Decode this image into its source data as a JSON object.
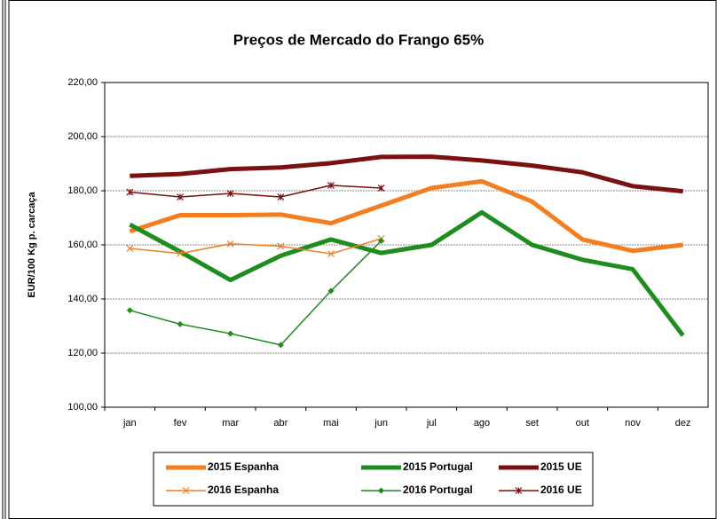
{
  "chart_data": {
    "type": "line",
    "title": "Preços de Mercado do Frango 65%",
    "y_label": "EUR/100 Kg p. carcaça",
    "categories": [
      "jan",
      "fev",
      "mar",
      "abr",
      "mai",
      "jun",
      "jul",
      "ago",
      "set",
      "out",
      "nov",
      "dez"
    ],
    "ylim": [
      100,
      220
    ],
    "yticks": [
      {
        "value": 100,
        "label": "100,00"
      },
      {
        "value": 120,
        "label": "120,00"
      },
      {
        "value": 140,
        "label": "140,00"
      },
      {
        "value": 160,
        "label": "160,00"
      },
      {
        "value": 180,
        "label": "180,00"
      },
      {
        "value": 200,
        "label": "200,00"
      },
      {
        "value": 220,
        "label": "220,00"
      }
    ],
    "grid": true,
    "legend": "bottom",
    "series": [
      {
        "name": "2015 Espanha",
        "color": "#f47d20",
        "linewidth": 5,
        "marker": "none",
        "values": [
          165,
          171,
          171,
          171.2,
          168,
          174.5,
          181,
          183.5,
          176,
          162,
          157.8,
          160
        ]
      },
      {
        "name": "2015 Portugal",
        "color": "#1e8c1e",
        "linewidth": 5,
        "marker": "none",
        "values": [
          167.5,
          157.5,
          147,
          156,
          162,
          157,
          160,
          172,
          160,
          154.5,
          151,
          126.5
        ]
      },
      {
        "name": "2015 UE",
        "color": "#7b1010",
        "linewidth": 5,
        "marker": "none",
        "values": [
          185.5,
          186.2,
          188,
          188.6,
          190.2,
          192.5,
          192.6,
          191.2,
          189.3,
          186.8,
          181.7,
          179.8
        ]
      },
      {
        "name": "2016 Espanha",
        "color": "#f47d20",
        "linewidth": 1.5,
        "marker": "x",
        "values": [
          158.7,
          156.8,
          160.4,
          159.5,
          156.7,
          162.3,
          null,
          null,
          null,
          null,
          null,
          null
        ]
      },
      {
        "name": "2016 Portugal",
        "color": "#1e8c1e",
        "linewidth": 1.5,
        "marker": "diamond",
        "values": [
          135.8,
          130.7,
          127.2,
          123,
          143,
          161.5,
          null,
          null,
          null,
          null,
          null,
          null
        ]
      },
      {
        "name": "2016 UE",
        "color": "#7b1010",
        "linewidth": 1.5,
        "marker": "asterisk",
        "values": [
          179.5,
          177.7,
          179,
          177.7,
          182,
          181,
          null,
          null,
          null,
          null,
          null,
          null
        ]
      }
    ]
  }
}
